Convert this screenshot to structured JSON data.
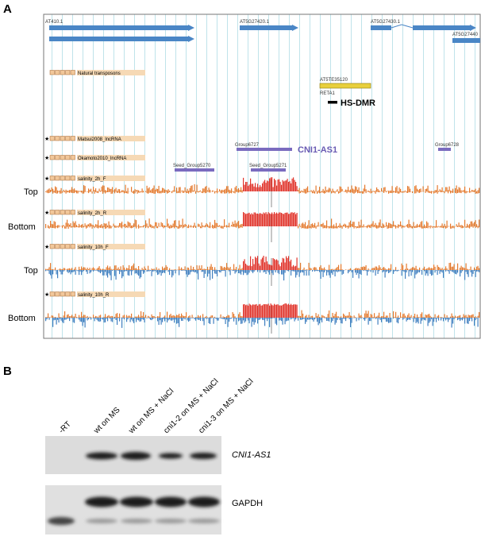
{
  "panel_a": {
    "label": "A",
    "genes": [
      "AT410.1",
      "AT5G27420.1",
      "AT5G27430.1",
      "AT5G27440"
    ],
    "transposon": {
      "header": "Natural transposons",
      "name": "AT5TE35120",
      "family": "RETA1",
      "dmr": "HS-DMR"
    },
    "lncrna": {
      "matsui_header": "Matsui2008_lncRNA",
      "okamoto_header": "Okamoto2010_lncRNA",
      "group_left": "Group6727",
      "highlight": "CNI1-AS1",
      "group_right": "Group6728",
      "seed_left": "Seed_Group5270",
      "seed_right": "Seed_Group5271"
    },
    "tracks": [
      {
        "header": "salinity_2h_F",
        "strand": "Top"
      },
      {
        "header": "salinity_2h_R",
        "strand": "Bottom"
      },
      {
        "header": "salinity_10h_F",
        "strand": "Top"
      },
      {
        "header": "salinity_10h_R",
        "strand": "Bottom"
      }
    ]
  },
  "panel_b": {
    "label": "B",
    "lanes": [
      "-RT",
      "wt on MS",
      "wt on MS + NaCl",
      "cni1-2 on MS + NaCl",
      "cni1-3 on MS + NaCl"
    ],
    "rows": [
      "CNI1-AS1",
      "GAPDH"
    ]
  }
}
